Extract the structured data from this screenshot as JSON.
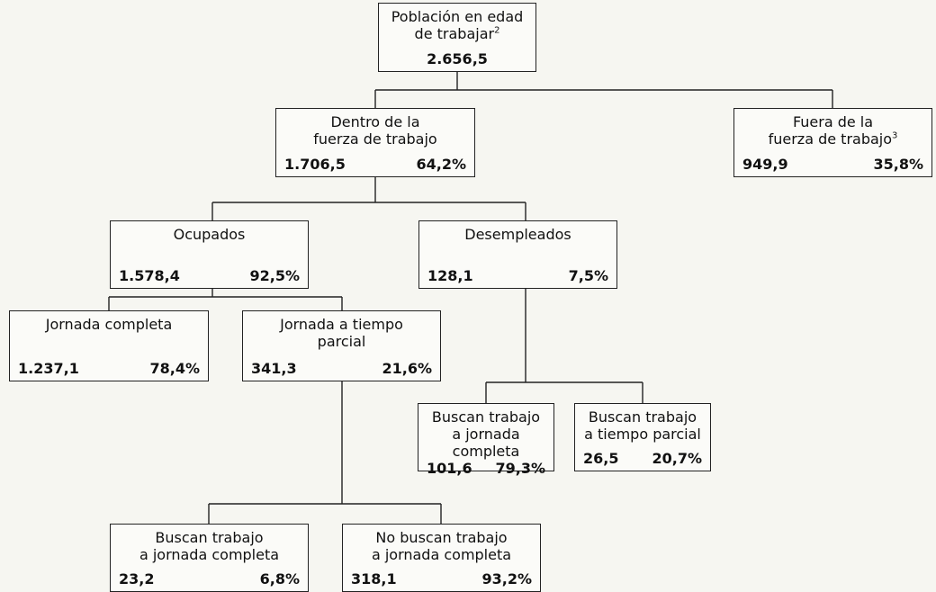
{
  "nodes": [
    {
      "lines": [
        "Población en edad",
        "de trabajar"
      ],
      "note": "2",
      "value": "2.656,5"
    },
    {
      "lines": [
        "Dentro de la",
        "fuerza de trabajo"
      ],
      "value": "1.706,5",
      "share": "64,2%"
    },
    {
      "lines": [
        "Fuera de la",
        "fuerza de trabajo"
      ],
      "note": "3",
      "value": "949,9",
      "share": "35,8%"
    },
    {
      "lines": [
        "Ocupados"
      ],
      "value": "1.578,4",
      "share": "92,5%"
    },
    {
      "lines": [
        "Desempleados"
      ],
      "value": "128,1",
      "share": "7,5%"
    },
    {
      "lines": [
        "Jornada completa"
      ],
      "value": "1.237,1",
      "share": "78,4%"
    },
    {
      "lines": [
        "Jornada a tiempo",
        "parcial"
      ],
      "value": "341,3",
      "share": "21,6%"
    },
    {
      "lines": [
        "Buscan trabajo",
        "a jornada completa"
      ],
      "value": "101,6",
      "share": "79,3%"
    },
    {
      "lines": [
        "Buscan trabajo",
        "a tiempo parcial"
      ],
      "value": "26,5",
      "share": "20,7%"
    },
    {
      "lines": [
        "Buscan trabajo",
        "a jornada completa"
      ],
      "value": "23,2",
      "share": "6,8%"
    },
    {
      "lines": [
        "No buscan trabajo",
        "a jornada completa"
      ],
      "value": "318,1",
      "share": "93,2%"
    }
  ]
}
